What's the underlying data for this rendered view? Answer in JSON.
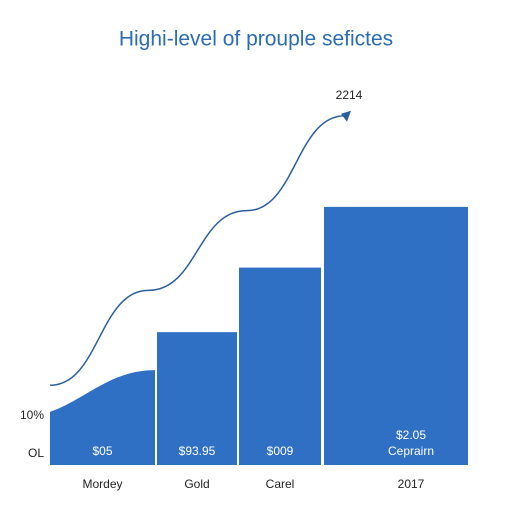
{
  "chart_data": {
    "type": "bar",
    "title": "Highi-level of prouple sefictes",
    "annotation": "2214",
    "categories": [
      "Mordey",
      "Gold",
      "Carel",
      "2017"
    ],
    "values": [
      22,
      32,
      49,
      65
    ],
    "area_start": 11,
    "value_labels": [
      [
        "$05"
      ],
      [
        "$93.95"
      ],
      [
        "$009"
      ],
      [
        "$2.05",
        "Ceprairn"
      ]
    ],
    "color": "#2f70c4",
    "line": {
      "values": [
        18,
        43,
        64,
        89
      ],
      "color": "#2a5f9e"
    },
    "ylim": [
      -3,
      95
    ],
    "yticks": [
      {
        "value": 0,
        "label": "OL"
      },
      {
        "value": 10,
        "label": "10%"
      }
    ]
  }
}
